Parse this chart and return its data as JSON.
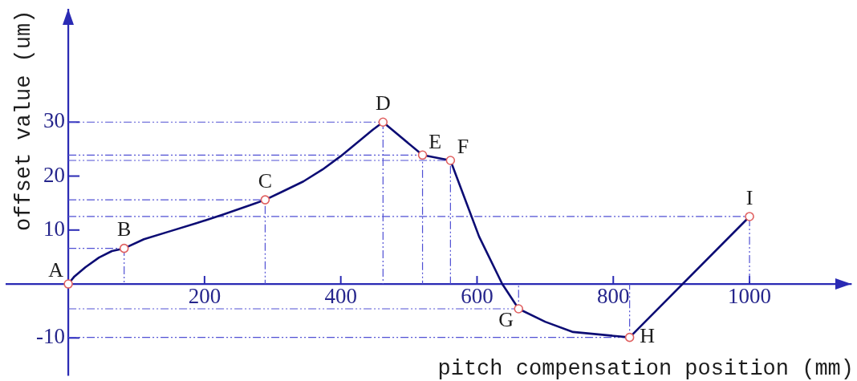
{
  "chart_data": {
    "type": "line",
    "xlabel": "pitch compensation position (mm)",
    "ylabel": "offset value (um)",
    "xlim": [
      -92,
      1150
    ],
    "ylim": [
      -17,
      51
    ],
    "xticks": [
      200,
      400,
      600,
      800,
      1000
    ],
    "yticks": [
      -10,
      10,
      20,
      30
    ],
    "series": [
      {
        "type": "line",
        "color": "#5050d4",
        "line_style": "dashed",
        "marker": "none",
        "x": [
          0,
          82,
          82
        ],
        "values": [
          6.6,
          6.6,
          0
        ]
      },
      {
        "type": "line",
        "color": "#5050d4",
        "line_style": "dashed",
        "marker": "none",
        "x": [
          0,
          289,
          289
        ],
        "values": [
          15.6,
          15.6,
          0
        ]
      },
      {
        "type": "line",
        "color": "#5050d4",
        "line_style": "dashed",
        "marker": "none",
        "x": [
          0,
          462,
          462
        ],
        "values": [
          30,
          30,
          0
        ]
      },
      {
        "type": "line",
        "color": "#5050d4",
        "line_style": "dashed",
        "marker": "none",
        "x": [
          0,
          520,
          520
        ],
        "values": [
          23.9,
          23.9,
          0
        ]
      },
      {
        "type": "line",
        "color": "#5050d4",
        "line_style": "dashed",
        "marker": "none",
        "x": [
          0,
          561,
          561
        ],
        "values": [
          22.9,
          22.9,
          0
        ]
      },
      {
        "type": "line",
        "color": "#5050d4",
        "line_style": "dashed",
        "marker": "none",
        "x": [
          0,
          661,
          661
        ],
        "values": [
          -4.6,
          -4.6,
          0
        ]
      },
      {
        "type": "line",
        "color": "#5050d4",
        "line_style": "dashed",
        "marker": "none",
        "x": [
          0,
          824,
          824
        ],
        "values": [
          -9.9,
          -9.9,
          0
        ]
      },
      {
        "type": "line",
        "color": "#5050d4",
        "line_style": "dashed",
        "marker": "none",
        "x": [
          0,
          1000,
          1000
        ],
        "values": [
          12.5,
          12.5,
          0
        ]
      },
      {
        "type": "line",
        "color": "#0c0c74",
        "line_style": "solid",
        "marker": "none",
        "x": [
          0,
          9,
          25,
          45,
          64,
          82,
          111,
          150,
          189,
          228,
          267,
          289,
          314,
          345,
          373,
          400,
          431,
          447,
          462,
          520,
          561,
          603,
          637,
          661,
          700,
          741,
          824,
          1000
        ],
        "values": [
          0,
          1.4,
          3.1,
          4.9,
          6.1,
          6.6,
          8.3,
          9.8,
          11.3,
          12.9,
          14.6,
          15.6,
          17.1,
          19.0,
          21.2,
          23.7,
          26.9,
          28.6,
          30,
          23.9,
          22.9,
          8.8,
          0,
          -4.6,
          -7.0,
          -8.9,
          -9.9,
          12.5
        ]
      },
      {
        "type": "scatter",
        "color": "#e06060",
        "marker": "circle",
        "x": [
          0,
          82,
          289,
          462,
          520,
          561,
          661,
          824,
          1000
        ],
        "values": [
          0,
          6.6,
          15.6,
          30,
          23.9,
          22.9,
          -4.6,
          -9.9,
          12.5
        ]
      }
    ],
    "annotations": [
      {
        "text": "A",
        "x": 0,
        "y": 0
      },
      {
        "text": "B",
        "x": 82,
        "y": 6.6
      },
      {
        "text": "C",
        "x": 289,
        "y": 15.6
      },
      {
        "text": "D",
        "x": 462,
        "y": 30
      },
      {
        "text": "E",
        "x": 520,
        "y": 23.9
      },
      {
        "text": "F",
        "x": 561,
        "y": 22.9
      },
      {
        "text": "G",
        "x": 661,
        "y": -4.6
      },
      {
        "text": "H",
        "x": 824,
        "y": -9.9
      },
      {
        "text": "I",
        "x": 1000,
        "y": 12.5
      }
    ]
  }
}
